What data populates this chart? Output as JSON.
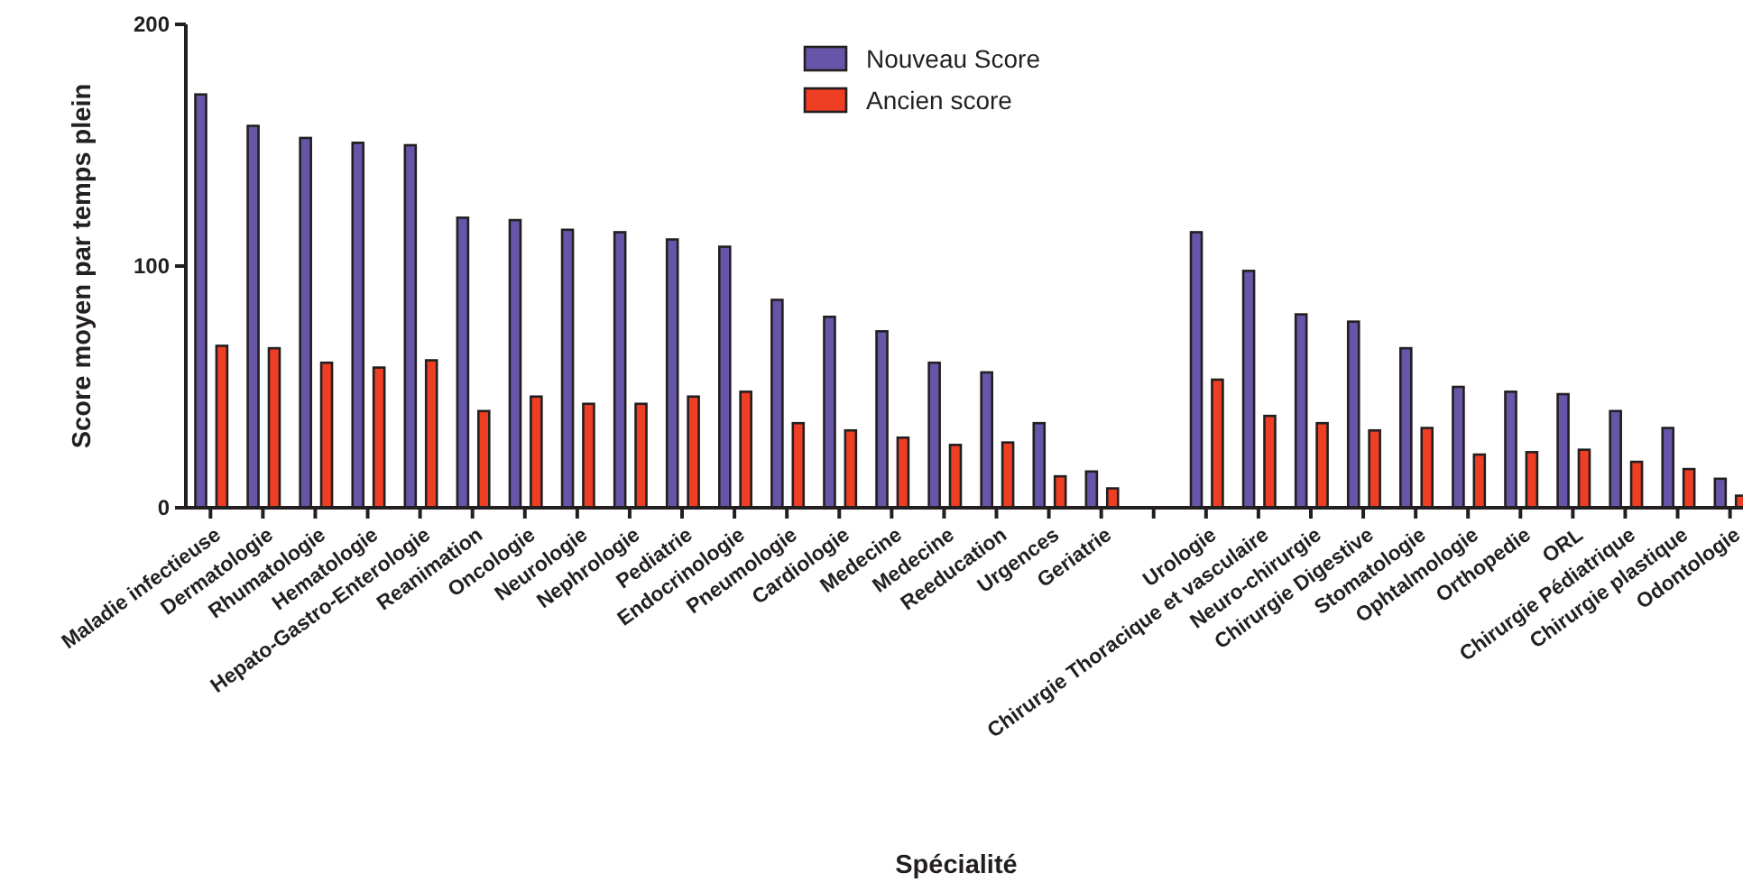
{
  "chart_data": {
    "type": "bar",
    "xlabel": "Spécialité",
    "ylabel": "Score moyen par temps plein",
    "categories": [
      "Maladie infectieuse",
      "Dermatologie",
      "Rhumatologie",
      "Hematologie",
      "Hepato-Gastro-Enterologie",
      "Reanimation",
      "Oncologie",
      "Neurologie",
      "Nephrologie",
      "Pediatrie",
      "Endocrinologie",
      "Pneumologie",
      "Cardiologie",
      "Medecine",
      "Medecine",
      "Reeducation",
      "Urgences",
      "Geriatrie",
      null,
      "Urologie",
      "Chirurgie Thoracique et vasculaire",
      "Neuro-chirurgie",
      "Chirurgie Digestive",
      "Stomatologie",
      "Ophtalmologie",
      "Orthopedie",
      "ORL",
      "Chirurgie Pédiatrique",
      "Chirurgie plastique",
      "Odontologie"
    ],
    "series": [
      {
        "name": "Nouveau Score",
        "color": "#6655a8",
        "values": [
          171,
          158,
          153,
          151,
          150,
          120,
          119,
          115,
          114,
          111,
          108,
          86,
          79,
          73,
          60,
          56,
          35,
          15,
          null,
          114,
          98,
          80,
          77,
          66,
          50,
          48,
          47,
          40,
          33,
          12
        ]
      },
      {
        "name": "Ancien score",
        "color": "#ee3e23",
        "values": [
          67,
          66,
          60,
          58,
          61,
          40,
          46,
          43,
          43,
          46,
          48,
          35,
          32,
          29,
          26,
          27,
          13,
          8,
          null,
          53,
          38,
          35,
          32,
          33,
          22,
          23,
          24,
          19,
          16,
          5
        ]
      }
    ],
    "ylim": [
      0,
      200
    ],
    "yticks": [
      0,
      100,
      200
    ],
    "grid": false,
    "legend": "top"
  }
}
